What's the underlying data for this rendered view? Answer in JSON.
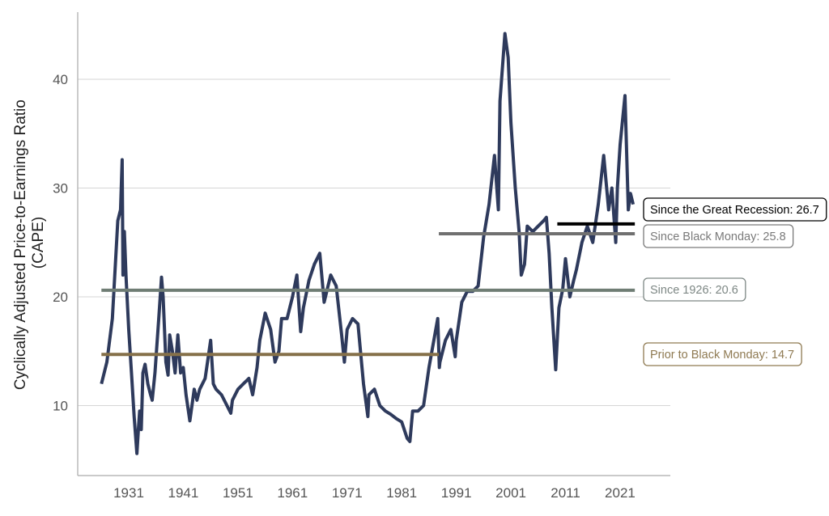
{
  "chart_data": {
    "type": "line",
    "title": "",
    "xlabel": "",
    "ylabel": "Cyclically Adjusted Price-to-Earnings Ratio (CAPE)",
    "ylabel_lines": [
      "Cyclically Adjusted Price-to-Earnings Ratio",
      "(CAPE)"
    ],
    "xlim": [
      1924.5,
      2025.5
    ],
    "ylim": [
      3,
      46
    ],
    "x_ticks": [
      1931,
      1941,
      1951,
      1961,
      1971,
      1981,
      1991,
      2001,
      2011,
      2021
    ],
    "y_ticks": [
      10,
      20,
      30,
      40
    ],
    "grid": "horizontal",
    "series": [
      {
        "color": "#2e3a5c",
        "x": [
          1926,
          1927,
          1928,
          1929,
          1929.5,
          1929.8,
          1929.95,
          1930.2,
          1930.5,
          1931,
          1931.5,
          1932,
          1932.5,
          1932.8,
          1933,
          1933.3,
          1933.6,
          1934,
          1934.5,
          1935,
          1935.3,
          1935.8,
          1936.5,
          1937,
          1937.3,
          1937.8,
          1938.2,
          1938.5,
          1939,
          1939.5,
          1940,
          1940.5,
          1941,
          1941.5,
          1942.2,
          1943,
          1943.5,
          1944,
          1945,
          1946,
          1946.5,
          1947,
          1948,
          1949,
          1949.7,
          1950,
          1951,
          1952,
          1953,
          1953.7,
          1954.5,
          1955,
          1956,
          1957,
          1957.8,
          1958.5,
          1959,
          1960,
          1961,
          1961.8,
          1962.5,
          1963,
          1964,
          1965,
          1966,
          1966.8,
          1967.5,
          1968,
          1969,
          1970,
          1970.5,
          1971,
          1972,
          1973,
          1974,
          1974.8,
          1975,
          1976,
          1977,
          1978,
          1979,
          1980,
          1981,
          1982,
          1982.5,
          1983,
          1984,
          1985,
          1986,
          1987.6,
          1987.9,
          1988,
          1989,
          1990,
          1990.8,
          1991,
          1992,
          1993,
          1994,
          1995,
          1996,
          1997,
          1998,
          1998.7,
          1999,
          1999.9,
          2000.5,
          2001,
          2001.8,
          2002.5,
          2002.9,
          2003.5,
          2004,
          2005,
          2006,
          2007,
          2007.5,
          2008,
          2008.5,
          2009.2,
          2009.8,
          2010.5,
          2011,
          2011.8,
          2012.5,
          2013,
          2014,
          2015,
          2016,
          2017,
          2018,
          2018.9,
          2019.5,
          2020.2,
          2020.5,
          2021,
          2021.9,
          2022.5,
          2022.9,
          2023.4
        ],
        "y": [
          12,
          14,
          18,
          27,
          28,
          32.6,
          22,
          26,
          22,
          17,
          13,
          9,
          5.6,
          8,
          9.5,
          7.8,
          13,
          13.8,
          12,
          11,
          10.5,
          13,
          18,
          21.8,
          20,
          14,
          12.8,
          16.5,
          15,
          13,
          16.5,
          13,
          13.5,
          11,
          8.6,
          11.5,
          10.5,
          11.5,
          12.5,
          16,
          12,
          11.5,
          11,
          10,
          9.3,
          10.5,
          11.5,
          12,
          12.5,
          11,
          13.5,
          16,
          18.5,
          17,
          14,
          15,
          18,
          18,
          20,
          22,
          16.8,
          19,
          21.5,
          23,
          24,
          19.5,
          21,
          22,
          21,
          16.5,
          14,
          17,
          18,
          17.5,
          12,
          9,
          11,
          11.5,
          10,
          9.5,
          9.2,
          8.8,
          8.5,
          7,
          6.7,
          9.5,
          9.5,
          10,
          13.5,
          18,
          13.5,
          14,
          16,
          17,
          14.5,
          16,
          19.5,
          20.5,
          20.5,
          21,
          25.5,
          28.5,
          33,
          28,
          38,
          44.2,
          42,
          36,
          30,
          26,
          22,
          23,
          26.5,
          26,
          26.5,
          27,
          27.3,
          24,
          19,
          13.3,
          19,
          20.7,
          23.5,
          20,
          21.5,
          22.5,
          25,
          26.5,
          25,
          28.5,
          33,
          28,
          30,
          25,
          30,
          34,
          38.5,
          28,
          29.5,
          28.5
        ]
      }
    ],
    "reference_lines": [
      {
        "label": "Since the Great Recession: 26.7",
        "value": 26.7,
        "from": 2009.5,
        "to": 2023.7,
        "color": "#000000",
        "border": "#000000",
        "text_color": "#000000"
      },
      {
        "label": "Since Black Monday: 25.8",
        "value": 25.8,
        "from": 1987.8,
        "to": 2023.7,
        "color": "#707070",
        "border": "#7a7a7a",
        "text_color": "#7a7a7a"
      },
      {
        "label": "Since 1926: 20.6",
        "value": 20.6,
        "from": 1926,
        "to": 2023.7,
        "color": "#6f7d74",
        "border": "#7d8784",
        "text_color": "#7d8784"
      },
      {
        "label": "Prior to Black Monday: 14.7",
        "value": 14.7,
        "from": 1926,
        "to": 1987.8,
        "color": "#857049",
        "border": "#8f7a52",
        "text_color": "#8f7a52"
      }
    ]
  }
}
